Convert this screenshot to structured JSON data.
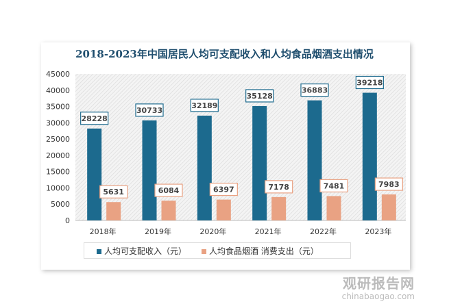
{
  "chart_data": {
    "type": "bar",
    "title": "2018-2023年中国居民人均可支配收入和人均食品烟酒支出情况",
    "categories": [
      "2018年",
      "2019年",
      "2020年",
      "2021年",
      "2022年",
      "2023年"
    ],
    "series": [
      {
        "name": "人均可支配收入（元）",
        "values": [
          28228,
          30733,
          32189,
          35128,
          36883,
          39218
        ],
        "color": "#1c6a8e"
      },
      {
        "name": "人均食品烟酒 消费支出（元）",
        "values": [
          5631,
          6084,
          6397,
          7178,
          7481,
          7983
        ],
        "color": "#e9a283"
      }
    ],
    "ylim": [
      0,
      45000
    ],
    "yticks": [
      0,
      5000,
      10000,
      15000,
      20000,
      25000,
      30000,
      35000,
      40000,
      45000
    ],
    "grid": false,
    "legend": "bottom",
    "plot_background": "hatched light gray"
  },
  "watermark": {
    "name": "观研报告网",
    "url": "chinabaogao.com"
  }
}
